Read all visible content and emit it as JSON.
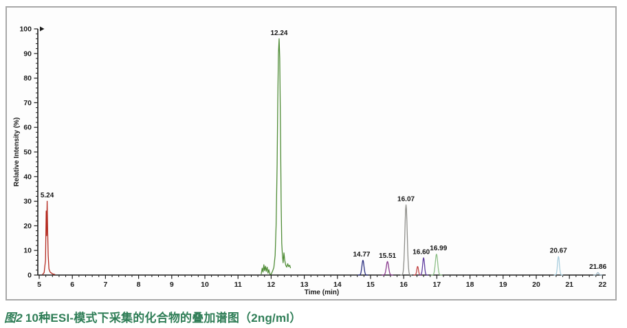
{
  "figure": {
    "caption_prefix": "图2",
    "caption_text": "10种ESI-模式下采集的化合物的叠加谱图（2ng/ml）",
    "caption_color": "#2e7d56"
  },
  "chart_data": {
    "type": "line",
    "title": "",
    "xlabel": "Time (min)",
    "ylabel": "Relative Intensity (%)",
    "legend": "none",
    "axes": {
      "xlim": [
        5,
        22.1
      ],
      "ylim": [
        0,
        100
      ],
      "x_ticks": [
        5,
        6,
        7,
        8,
        9,
        10,
        11,
        12,
        13,
        14,
        15,
        16,
        17,
        18,
        19,
        20,
        21,
        22
      ],
      "y_ticks": [
        0,
        10,
        20,
        30,
        40,
        50,
        60,
        70,
        80,
        90,
        100
      ],
      "x_minor_step": 0.2,
      "y_minor_step": 2,
      "grid": false
    },
    "series": [
      {
        "name": "peak-1",
        "label": "5.24",
        "rt": 5.24,
        "height": 30,
        "color": "#b3281e",
        "trace": [
          [
            5.1,
            0.2
          ],
          [
            5.15,
            1.0
          ],
          [
            5.19,
            6
          ],
          [
            5.212,
            26
          ],
          [
            5.224,
            16
          ],
          [
            5.24,
            30
          ],
          [
            5.256,
            18
          ],
          [
            5.272,
            8
          ],
          [
            5.295,
            2.5
          ],
          [
            5.33,
            1.2
          ],
          [
            5.4,
            0.5
          ],
          [
            5.48,
            0.2
          ]
        ]
      },
      {
        "name": "peak-2",
        "label": "12.24",
        "rt": 12.24,
        "height": 96,
        "color": "#4f8c36",
        "trace": [
          [
            11.7,
            0.3
          ],
          [
            11.73,
            2.8
          ],
          [
            11.755,
            1.2
          ],
          [
            11.78,
            4.2
          ],
          [
            11.8,
            1.8
          ],
          [
            11.83,
            3.6
          ],
          [
            11.85,
            1.5
          ],
          [
            11.88,
            3.2
          ],
          [
            11.905,
            0.8
          ],
          [
            11.93,
            2.2
          ],
          [
            11.96,
            0.4
          ],
          [
            12.0,
            0.3
          ],
          [
            12.04,
            1.5
          ],
          [
            12.08,
            3
          ],
          [
            12.12,
            8
          ],
          [
            12.15,
            20
          ],
          [
            12.18,
            45
          ],
          [
            12.2,
            70
          ],
          [
            12.22,
            90
          ],
          [
            12.24,
            96
          ],
          [
            12.26,
            88
          ],
          [
            12.28,
            62
          ],
          [
            12.3,
            30
          ],
          [
            12.32,
            13
          ],
          [
            12.34,
            8
          ],
          [
            12.36,
            5
          ],
          [
            12.385,
            9
          ],
          [
            12.41,
            6
          ],
          [
            12.44,
            4
          ],
          [
            12.47,
            3.2
          ],
          [
            12.5,
            4.6
          ],
          [
            12.53,
            3.4
          ],
          [
            12.56,
            4
          ],
          [
            12.585,
            2.8
          ]
        ]
      },
      {
        "name": "peak-3",
        "label": "14.77",
        "rt": 14.77,
        "height": 6,
        "sigma": 0.045,
        "color": "#2b2f80",
        "label_dt": -0.04
      },
      {
        "name": "peak-4",
        "label": "15.51",
        "rt": 15.51,
        "height": 5.5,
        "sigma": 0.05,
        "color": "#8a3b8e"
      },
      {
        "name": "peak-5",
        "label": "16.07",
        "rt": 16.07,
        "height": 28.5,
        "sigma": 0.05,
        "color": "#8d8d89"
      },
      {
        "name": "peak-6",
        "label": "",
        "rt": 16.42,
        "height": 3.5,
        "sigma": 0.035,
        "color": "#c24444"
      },
      {
        "name": "peak-7",
        "label": "16.60",
        "rt": 16.6,
        "height": 7,
        "sigma": 0.04,
        "color": "#5f3b9f",
        "label_dt": -0.07
      },
      {
        "name": "peak-8",
        "label": "16.99",
        "rt": 16.99,
        "height": 8.5,
        "sigma": 0.05,
        "color": "#8cbf86",
        "label_dt": 0.06
      },
      {
        "name": "peak-9",
        "label": "20.67",
        "rt": 20.67,
        "height": 7.5,
        "sigma": 0.04,
        "color": "#a9cede"
      },
      {
        "name": "peak-10",
        "label": "21.86",
        "rt": 21.86,
        "height": 1,
        "sigma": 0.04,
        "color": "#9db6c4"
      }
    ]
  }
}
